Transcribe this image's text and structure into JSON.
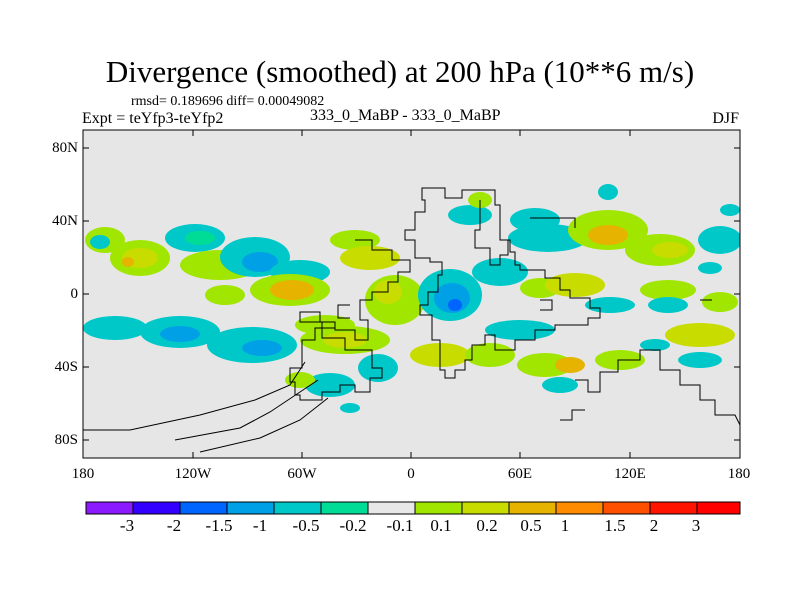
{
  "title": "Divergence (smoothed) at 200 hPa (10**6 m/s)",
  "stats": "rmsd= 0.189696 diff= 0.00049082",
  "experiment": "Expt = teYfp3-teYfp2",
  "case_label": "333_0_MaBP - 333_0_MaBP",
  "season": "DJF",
  "lat_labels": [
    "80N",
    "40N",
    "0",
    "40S",
    "80S"
  ],
  "lon_labels": [
    "180",
    "120W",
    "60W",
    "0",
    "60E",
    "120E",
    "180"
  ],
  "colorbar": {
    "colors": [
      "#8c1aff",
      "#3300ff",
      "#0064ff",
      "#00a0e6",
      "#00c8c8",
      "#00dc96",
      "#e8e8e8",
      "#a0e600",
      "#c8dc00",
      "#e6b400",
      "#ff8c00",
      "#ff5000",
      "#ff1400",
      "#ff0000"
    ],
    "labels": [
      "-3",
      "-2",
      "-1.5",
      "-1",
      "-0.5",
      "-0.2",
      "-0.1",
      "0.1",
      "0.2",
      "0.5",
      "1",
      "1.5",
      "2",
      "3"
    ]
  },
  "colors": {
    "background": "#e6e6e6",
    "neutral": "#e8e8e8",
    "coastline": "#000000"
  }
}
